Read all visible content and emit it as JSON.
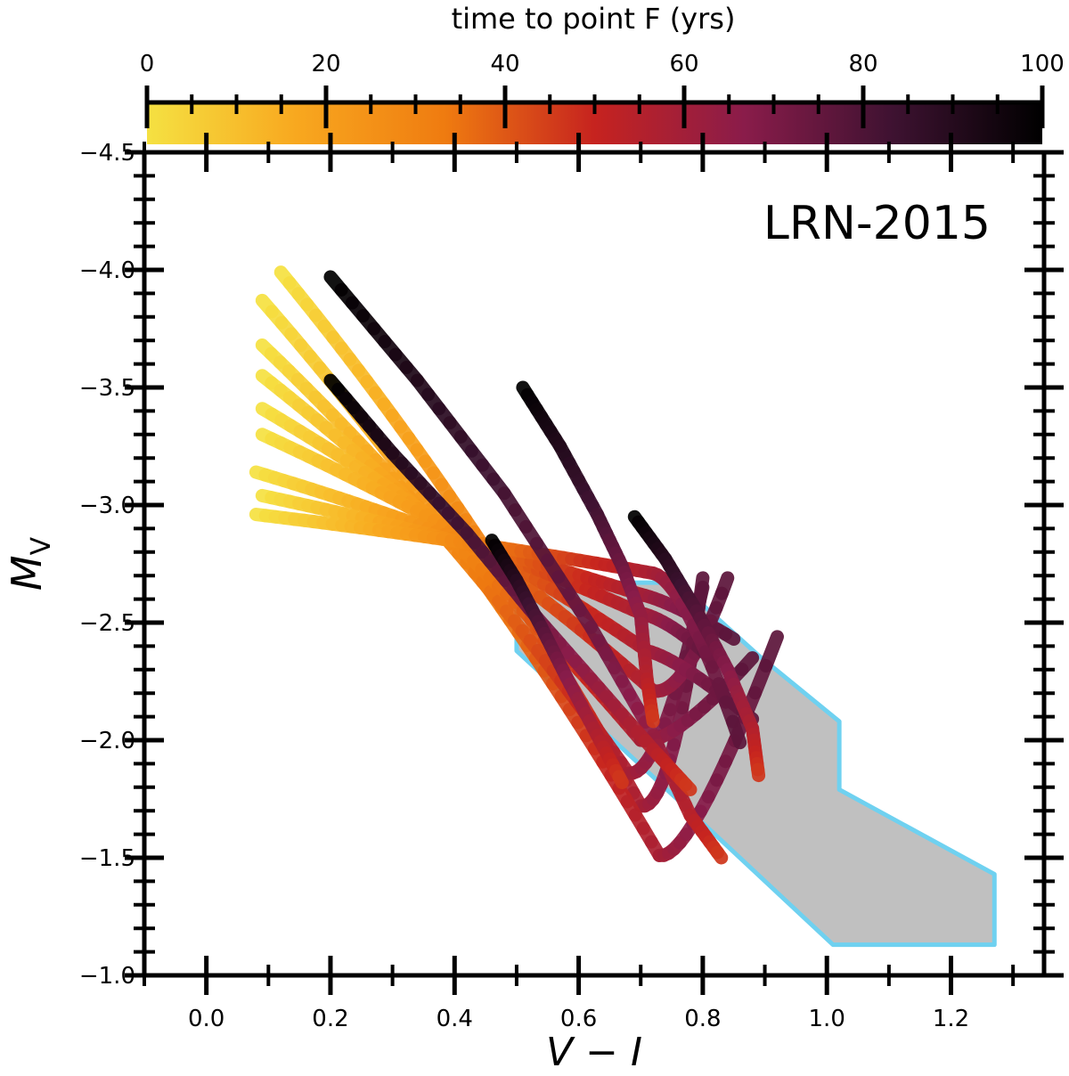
{
  "chart_data": {
    "type": "line",
    "annotation": "LRN-2015",
    "xlabel": "V − I",
    "ylabel_main": "M",
    "ylabel_sub": "V",
    "xlim": [
      -0.1,
      1.35
    ],
    "ylim": [
      -1.0,
      -4.5
    ],
    "y_inverted": true,
    "x_ticks": [
      0.0,
      0.2,
      0.4,
      0.6,
      0.8,
      1.0,
      1.2
    ],
    "x_tick_labels": [
      "0.0",
      "0.2",
      "0.4",
      "0.6",
      "0.8",
      "1.0",
      "1.2"
    ],
    "y_ticks": [
      -4.5,
      -4.0,
      -3.5,
      -3.0,
      -2.5,
      -2.0,
      -1.5,
      -1.0
    ],
    "y_tick_labels": [
      "−4.5",
      "−4.0",
      "−3.5",
      "−3.0",
      "−2.5",
      "−2.0",
      "−1.5",
      "−1.0"
    ],
    "colorbar": {
      "label": "time to point F (yrs)",
      "range": [
        0,
        100
      ],
      "ticks": [
        0,
        20,
        40,
        60,
        80,
        100
      ],
      "tick_labels": [
        "0",
        "20",
        "40",
        "60",
        "80",
        "100"
      ],
      "colormap": "inferno_r",
      "colors": [
        "#f5e142",
        "#f8a81f",
        "#ef7b10",
        "#c6231f",
        "#8a1c4a",
        "#3e1231",
        "#000000"
      ]
    },
    "region": {
      "fill": "#c0c0c0",
      "stroke": "#6fd1f0",
      "points": [
        [
          0.5,
          -2.67
        ],
        [
          0.76,
          -2.67
        ],
        [
          0.89,
          -2.36
        ],
        [
          1.02,
          -2.08
        ],
        [
          1.02,
          -1.79
        ],
        [
          1.27,
          -1.43
        ],
        [
          1.27,
          -1.13
        ],
        [
          1.01,
          -1.13
        ],
        [
          0.73,
          -1.82
        ],
        [
          0.5,
          -2.38
        ]
      ]
    },
    "tracks": [
      {
        "start": [
          0.12,
          -3.99
        ],
        "tip": [
          0.7,
          -1.72
        ],
        "end": [
          0.8,
          -2.69
        ]
      },
      {
        "start": [
          0.09,
          -3.87
        ],
        "tip": [
          0.73,
          -1.51
        ],
        "end": [
          0.92,
          -2.44
        ]
      },
      {
        "start": [
          0.09,
          -3.68
        ],
        "tip": [
          0.68,
          -1.86
        ],
        "end": [
          0.8,
          -2.65
        ]
      },
      {
        "start": [
          0.09,
          -3.55
        ],
        "tip": [
          0.7,
          -2.0
        ],
        "end": [
          0.88,
          -2.35
        ]
      },
      {
        "start": [
          0.09,
          -3.41
        ],
        "tip": [
          0.72,
          -2.21
        ],
        "end": [
          0.84,
          -2.69
        ]
      },
      {
        "start": [
          0.09,
          -3.3
        ],
        "tip": [
          0.71,
          -2.38
        ],
        "end": [
          0.88,
          -2.09
        ]
      },
      {
        "start": [
          0.08,
          -3.14
        ],
        "tip": [
          0.7,
          -2.54
        ],
        "end": [
          0.82,
          -2.33
        ]
      },
      {
        "start": [
          0.09,
          -3.04
        ],
        "tip": [
          0.7,
          -2.62
        ],
        "end": [
          0.85,
          -2.43
        ]
      },
      {
        "start": [
          0.08,
          -2.96
        ],
        "tip": [
          0.72,
          -2.71
        ],
        "end": [
          0.86,
          -1.99
        ]
      }
    ],
    "curves": [
      {
        "points": [
          [
            0.2,
            -3.97
          ],
          [
            0.34,
            -3.53
          ],
          [
            0.48,
            -3.05
          ],
          [
            0.62,
            -2.48
          ],
          [
            0.72,
            -2.02
          ],
          [
            0.78,
            -1.68
          ],
          [
            0.83,
            -1.5
          ]
        ]
      },
      {
        "points": [
          [
            0.2,
            -3.53
          ],
          [
            0.3,
            -3.22
          ],
          [
            0.42,
            -2.88
          ],
          [
            0.52,
            -2.56
          ],
          [
            0.62,
            -2.26
          ],
          [
            0.72,
            -1.96
          ],
          [
            0.78,
            -1.79
          ]
        ]
      },
      {
        "points": [
          [
            0.51,
            -3.5
          ],
          [
            0.57,
            -3.25
          ],
          [
            0.63,
            -2.96
          ],
          [
            0.67,
            -2.74
          ],
          [
            0.7,
            -2.53
          ],
          [
            0.71,
            -2.26
          ],
          [
            0.72,
            -2.08
          ]
        ]
      },
      {
        "points": [
          [
            0.69,
            -2.95
          ],
          [
            0.74,
            -2.77
          ],
          [
            0.79,
            -2.55
          ],
          [
            0.84,
            -2.3
          ],
          [
            0.88,
            -2.05
          ],
          [
            0.89,
            -1.85
          ]
        ]
      },
      {
        "points": [
          [
            0.46,
            -2.85
          ],
          [
            0.5,
            -2.68
          ],
          [
            0.54,
            -2.48
          ],
          [
            0.58,
            -2.27
          ],
          [
            0.63,
            -2.02
          ],
          [
            0.67,
            -1.82
          ]
        ]
      }
    ]
  }
}
